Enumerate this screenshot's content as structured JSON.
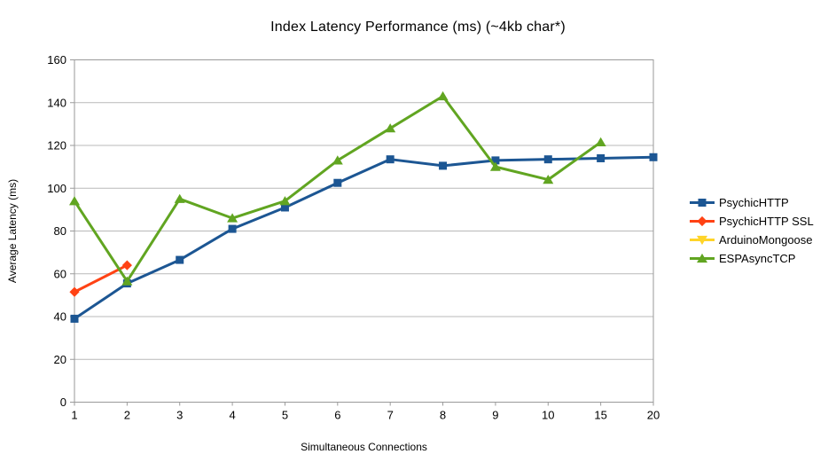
{
  "chart_data": {
    "type": "line",
    "title": "Index Latency Performance (ms) (~4kb char*)",
    "xlabel": "Simultaneous Connections",
    "ylabel": "Average Latency (ms)",
    "categories": [
      "1",
      "2",
      "3",
      "4",
      "5",
      "6",
      "7",
      "8",
      "9",
      "10",
      "15",
      "20"
    ],
    "ylim": [
      0,
      160
    ],
    "ytick_step": 20,
    "grid": true,
    "legend_position": "right",
    "colors": {
      "grid": "#b9b9b9",
      "axis": "#9a9a9a",
      "background": "#ffffff"
    },
    "series": [
      {
        "name": "PsychicHTTP",
        "color": "#1c5693",
        "marker": "square",
        "values": [
          39,
          55.5,
          66.5,
          81,
          91,
          102.5,
          113.5,
          110.5,
          113,
          113.5,
          114,
          114.5
        ]
      },
      {
        "name": "PsychicHTTP SSL",
        "color": "#ff4214",
        "marker": "diamond",
        "values": [
          51.5,
          64,
          null,
          null,
          null,
          null,
          null,
          null,
          null,
          null,
          null,
          null
        ]
      },
      {
        "name": "ArduinoMongoose",
        "color": "#ffd428",
        "marker": "triangle-down",
        "values": [
          null,
          null,
          null,
          null,
          null,
          null,
          null,
          null,
          null,
          null,
          null,
          null
        ]
      },
      {
        "name": "ESPAsyncTCP",
        "color": "#61a521",
        "marker": "triangle-up",
        "values": [
          94,
          56.5,
          95,
          86,
          94,
          113,
          128,
          143,
          110,
          104,
          121.5,
          null
        ]
      }
    ]
  }
}
